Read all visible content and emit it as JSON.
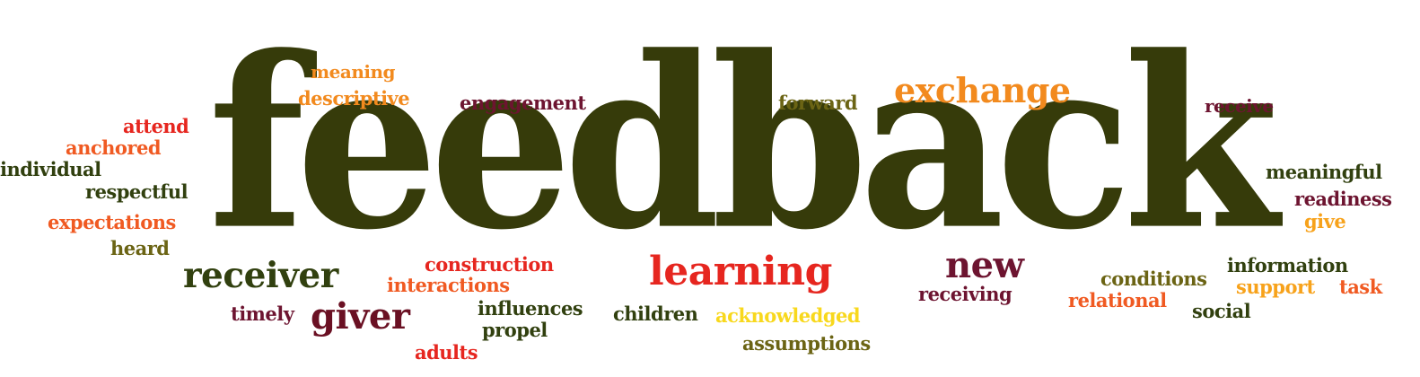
{
  "colors": {
    "dark_olive": "#363b0a",
    "dark_green": "#31400f",
    "olive": "#6b6414",
    "maroon": "#6d1430",
    "dark_red": "#6a1023",
    "red": "#e6261f",
    "orange": "#f28a1e",
    "orange_red": "#f05a22",
    "yellow": "#f8d81d",
    "amber": "#f7a21b"
  },
  "words": [
    {
      "key": "feedback",
      "text": "feedback",
      "color": "#363b0a"
    },
    {
      "key": "meaning",
      "text": "meaning",
      "color": "#f28a1e"
    },
    {
      "key": "descriptive",
      "text": "descriptive",
      "color": "#f28a1e"
    },
    {
      "key": "engagement",
      "text": "engagement",
      "color": "#6d1430"
    },
    {
      "key": "forward",
      "text": "forward",
      "color": "#6b6414"
    },
    {
      "key": "exchange",
      "text": "exchange",
      "color": "#f28a1e"
    },
    {
      "key": "receive",
      "text": "receive",
      "color": "#6d1430"
    },
    {
      "key": "attend",
      "text": "attend",
      "color": "#e6261f"
    },
    {
      "key": "anchored",
      "text": "anchored",
      "color": "#f05a22"
    },
    {
      "key": "individual",
      "text": "individual",
      "color": "#31400f"
    },
    {
      "key": "respectful",
      "text": "respectful",
      "color": "#31400f"
    },
    {
      "key": "expectations",
      "text": "expectations",
      "color": "#f05a22"
    },
    {
      "key": "heard",
      "text": "heard",
      "color": "#6b6414"
    },
    {
      "key": "meaningful",
      "text": "meaningful",
      "color": "#31400f"
    },
    {
      "key": "readiness",
      "text": "readiness",
      "color": "#6d1430"
    },
    {
      "key": "give",
      "text": "give",
      "color": "#f7a21b"
    },
    {
      "key": "receiver",
      "text": "receiver",
      "color": "#31400f"
    },
    {
      "key": "construction",
      "text": "construction",
      "color": "#e6261f"
    },
    {
      "key": "interactions",
      "text": "interactions",
      "color": "#f05a22"
    },
    {
      "key": "learning",
      "text": "learning",
      "color": "#e6261f"
    },
    {
      "key": "new",
      "text": "new",
      "color": "#6d1430"
    },
    {
      "key": "receiving",
      "text": "receiving",
      "color": "#6d1430"
    },
    {
      "key": "conditions",
      "text": "conditions",
      "color": "#6b6414"
    },
    {
      "key": "information",
      "text": "information",
      "color": "#31400f"
    },
    {
      "key": "support",
      "text": "support",
      "color": "#f7a21b"
    },
    {
      "key": "task",
      "text": "task",
      "color": "#f05a22"
    },
    {
      "key": "relational",
      "text": "relational",
      "color": "#f05a22"
    },
    {
      "key": "social",
      "text": "social",
      "color": "#31400f"
    },
    {
      "key": "timely",
      "text": "timely",
      "color": "#6d1430"
    },
    {
      "key": "giver",
      "text": "giver",
      "color": "#6a1023"
    },
    {
      "key": "influences",
      "text": "influences",
      "color": "#31400f"
    },
    {
      "key": "propel",
      "text": "propel",
      "color": "#31400f"
    },
    {
      "key": "children",
      "text": "children",
      "color": "#31400f"
    },
    {
      "key": "acknowledged",
      "text": "acknowledged",
      "color": "#f8d81d"
    },
    {
      "key": "assumptions",
      "text": "assumptions",
      "color": "#6b6414"
    },
    {
      "key": "adults",
      "text": "adults",
      "color": "#e6261f"
    }
  ]
}
